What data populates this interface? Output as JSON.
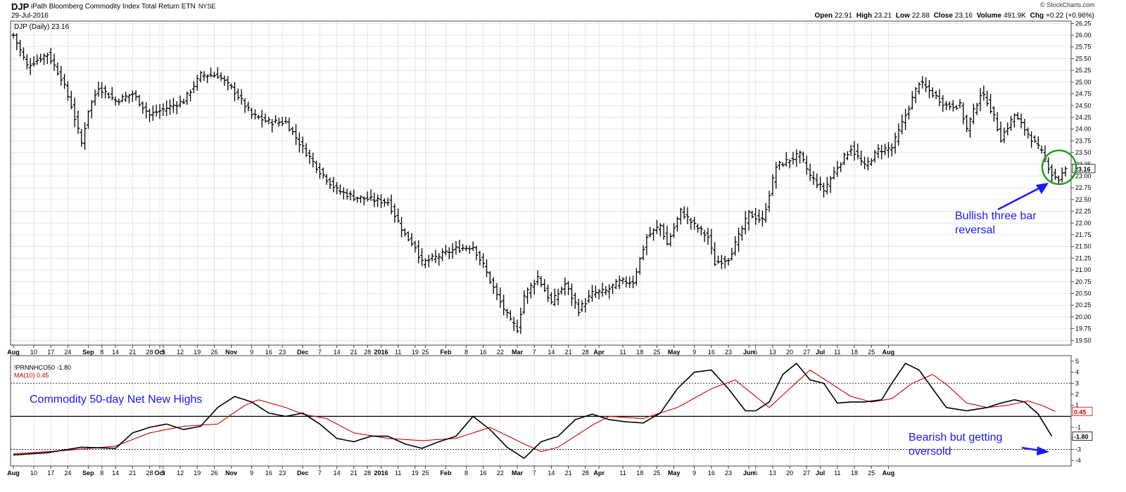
{
  "header": {
    "symbol": "DJP",
    "description": "iPath Bloomberg Commodity Index Total Return ETN",
    "exchange": "NYSE",
    "date": "29-Jul-2016",
    "copyright": "© StockCharts.com",
    "quote": {
      "open_label": "Open",
      "open": "22.91",
      "high_label": "High",
      "high": "23.21",
      "low_label": "Low",
      "low": "22.88",
      "close_label": "Close",
      "close": "23.16",
      "volume_label": "Volume",
      "volume": "491.9K",
      "chg_label": "Chg",
      "chg": "+0.22 (+0.96%)"
    }
  },
  "colors": {
    "price_bars": "#000000",
    "ma_line": "#cc0000",
    "indicator_line": "#000000",
    "annotation_blue": "#1a1aff",
    "circle_green": "#1f9e1f",
    "grid": "#d6d6d6"
  },
  "chart_data": [
    {
      "type": "ohlc",
      "legend": "DJP (Daily) 23.16",
      "last_value_tag": "23.16",
      "x_tick_labels": [
        "Aug",
        "10",
        "17",
        "24",
        "Sep",
        "8",
        "14",
        "21",
        "28",
        "Oct",
        "5",
        "12",
        "19",
        "26",
        "Nov",
        "9",
        "16",
        "23",
        "Dec",
        "7",
        "14",
        "21",
        "28",
        "2016",
        "11",
        "19",
        "25",
        "Feb",
        "8",
        "16",
        "22",
        "Mar",
        "7",
        "14",
        "21",
        "28",
        "Apr",
        "11",
        "18",
        "25",
        "May",
        "9",
        "16",
        "23",
        "Jun",
        "6",
        "13",
        "20",
        "27",
        "Jul",
        "11",
        "18",
        "25",
        "Aug"
      ],
      "y_tick_labels": [
        "19.50",
        "19.75",
        "20.00",
        "20.25",
        "20.50",
        "20.75",
        "21.00",
        "21.25",
        "21.50",
        "21.75",
        "22.00",
        "22.25",
        "22.50",
        "22.75",
        "23.00",
        "23.25",
        "23.50",
        "23.75",
        "24.00",
        "24.25",
        "24.50",
        "24.75",
        "25.00",
        "25.25",
        "25.50",
        "25.75",
        "26.00",
        "26.25"
      ],
      "ylim": [
        19.4,
        26.3
      ],
      "scale": "linear",
      "grid": true,
      "series": [
        {
          "anchors": [
            [
              0,
              26.0
            ],
            [
              4,
              25.35
            ],
            [
              10,
              25.6
            ],
            [
              14,
              25.1
            ],
            [
              17,
              24.5
            ],
            [
              20,
              23.7
            ],
            [
              22,
              24.4
            ],
            [
              25,
              24.9
            ],
            [
              30,
              24.6
            ],
            [
              35,
              24.75
            ],
            [
              40,
              24.3
            ],
            [
              45,
              24.45
            ],
            [
              50,
              24.6
            ],
            [
              55,
              25.15
            ],
            [
              60,
              25.15
            ],
            [
              65,
              24.8
            ],
            [
              70,
              24.3
            ],
            [
              75,
              24.15
            ],
            [
              80,
              24.15
            ],
            [
              85,
              23.6
            ],
            [
              90,
              23.1
            ],
            [
              95,
              22.7
            ],
            [
              100,
              22.55
            ],
            [
              105,
              22.5
            ],
            [
              110,
              22.45
            ],
            [
              115,
              21.75
            ],
            [
              118,
              21.5
            ],
            [
              120,
              21.15
            ],
            [
              125,
              21.3
            ],
            [
              130,
              21.45
            ],
            [
              135,
              21.5
            ],
            [
              138,
              21.1
            ],
            [
              142,
              20.45
            ],
            [
              146,
              19.9
            ],
            [
              148,
              19.75
            ],
            [
              150,
              20.45
            ],
            [
              154,
              20.85
            ],
            [
              158,
              20.3
            ],
            [
              162,
              20.7
            ],
            [
              166,
              20.15
            ],
            [
              170,
              20.5
            ],
            [
              174,
              20.55
            ],
            [
              178,
              20.75
            ],
            [
              182,
              20.75
            ],
            [
              186,
              21.7
            ],
            [
              190,
              21.95
            ],
            [
              192,
              21.55
            ],
            [
              196,
              22.25
            ],
            [
              200,
              21.95
            ],
            [
              204,
              21.7
            ],
            [
              206,
              21.15
            ],
            [
              210,
              21.25
            ],
            [
              212,
              21.55
            ],
            [
              216,
              22.2
            ],
            [
              220,
              22.05
            ],
            [
              224,
              23.2
            ],
            [
              228,
              23.35
            ],
            [
              231,
              23.45
            ],
            [
              234,
              23.0
            ],
            [
              238,
              22.7
            ],
            [
              242,
              23.2
            ],
            [
              246,
              23.6
            ],
            [
              250,
              23.2
            ],
            [
              254,
              23.55
            ],
            [
              258,
              23.6
            ],
            [
              262,
              24.3
            ],
            [
              266,
              25.0
            ],
            [
              270,
              24.75
            ],
            [
              274,
              24.5
            ],
            [
              278,
              24.5
            ],
            [
              280,
              24.0
            ],
            [
              284,
              24.75
            ],
            [
              286,
              24.6
            ],
            [
              288,
              24.25
            ],
            [
              290,
              23.8
            ],
            [
              294,
              24.3
            ],
            [
              298,
              23.9
            ],
            [
              302,
              23.5
            ],
            [
              305,
              23.05
            ],
            [
              307,
              22.93
            ],
            [
              309,
              23.16
            ]
          ]
        }
      ]
    },
    {
      "type": "line",
      "legend_main": "!PRNNHCO50 -1.80",
      "legend_ma": "MA(10) 0.45",
      "last_tag_main": "-1.80",
      "last_tag_ma": "0.45",
      "x_tick_labels": [
        "Aug",
        "10",
        "17",
        "24",
        "Sep",
        "8",
        "14",
        "21",
        "28",
        "Oct",
        "5",
        "12",
        "19",
        "26",
        "Nov",
        "9",
        "16",
        "23",
        "Dec",
        "7",
        "14",
        "21",
        "28",
        "2016",
        "11",
        "19",
        "25",
        "Feb",
        "8",
        "16",
        "22",
        "Mar",
        "7",
        "14",
        "21",
        "28",
        "Apr",
        "11",
        "18",
        "25",
        "May",
        "9",
        "16",
        "23",
        "Jun",
        "6",
        "13",
        "20",
        "27",
        "Jul",
        "11",
        "18",
        "25",
        "Aug"
      ],
      "y_tick_labels": [
        "5",
        "4",
        "3",
        "2",
        "1",
        "-1",
        "-2",
        "-3",
        "-4"
      ],
      "ylim": [
        -4.5,
        5.5
      ],
      "reference_lines": [
        3,
        0,
        -3
      ],
      "series": [
        {
          "name": "!PRNNHCO50",
          "anchors": [
            [
              0,
              -3.5
            ],
            [
              10,
              -3.3
            ],
            [
              20,
              -2.8
            ],
            [
              30,
              -2.9
            ],
            [
              35,
              -1.5
            ],
            [
              40,
              -1.0
            ],
            [
              45,
              -0.7
            ],
            [
              50,
              -1.2
            ],
            [
              55,
              -0.9
            ],
            [
              60,
              0.8
            ],
            [
              65,
              1.8
            ],
            [
              70,
              1.3
            ],
            [
              75,
              0.3
            ],
            [
              80,
              0.0
            ],
            [
              85,
              0.3
            ],
            [
              90,
              -0.7
            ],
            [
              95,
              -2.0
            ],
            [
              100,
              -2.3
            ],
            [
              105,
              -1.8
            ],
            [
              110,
              -1.8
            ],
            [
              115,
              -2.5
            ],
            [
              120,
              -2.9
            ],
            [
              125,
              -2.3
            ],
            [
              130,
              -1.8
            ],
            [
              135,
              0.0
            ],
            [
              140,
              -1.2
            ],
            [
              145,
              -2.8
            ],
            [
              150,
              -3.8
            ],
            [
              155,
              -2.3
            ],
            [
              160,
              -1.8
            ],
            [
              165,
              -0.3
            ],
            [
              170,
              0.2
            ],
            [
              175,
              -0.3
            ],
            [
              180,
              -0.5
            ],
            [
              185,
              -0.6
            ],
            [
              190,
              0.3
            ],
            [
              195,
              2.5
            ],
            [
              200,
              4.0
            ],
            [
              205,
              4.2
            ],
            [
              210,
              2.5
            ],
            [
              215,
              0.5
            ],
            [
              218,
              0.5
            ],
            [
              222,
              1.3
            ],
            [
              226,
              3.8
            ],
            [
              230,
              4.8
            ],
            [
              234,
              3.3
            ],
            [
              238,
              3.0
            ],
            [
              242,
              1.2
            ],
            [
              246,
              1.3
            ],
            [
              250,
              1.3
            ],
            [
              255,
              1.5
            ],
            [
              258,
              3.0
            ],
            [
              262,
              4.8
            ],
            [
              266,
              4.2
            ],
            [
              270,
              2.5
            ],
            [
              274,
              0.8
            ],
            [
              280,
              0.5
            ],
            [
              286,
              0.8
            ],
            [
              290,
              1.2
            ],
            [
              294,
              1.5
            ],
            [
              297,
              1.3
            ],
            [
              301,
              0.2
            ],
            [
              305,
              -1.8
            ]
          ]
        },
        {
          "name": "MA(10)",
          "anchors": [
            [
              0,
              -3.4
            ],
            [
              15,
              -3.1
            ],
            [
              30,
              -2.7
            ],
            [
              40,
              -1.5
            ],
            [
              50,
              -0.9
            ],
            [
              60,
              -0.7
            ],
            [
              68,
              1.0
            ],
            [
              72,
              1.5
            ],
            [
              80,
              0.8
            ],
            [
              85,
              0.2
            ],
            [
              92,
              -0.2
            ],
            [
              100,
              -1.5
            ],
            [
              110,
              -2.0
            ],
            [
              120,
              -2.2
            ],
            [
              130,
              -2.0
            ],
            [
              140,
              -1.0
            ],
            [
              150,
              -2.5
            ],
            [
              155,
              -3.2
            ],
            [
              160,
              -2.8
            ],
            [
              170,
              -0.8
            ],
            [
              175,
              0.0
            ],
            [
              185,
              -0.2
            ],
            [
              195,
              0.8
            ],
            [
              205,
              2.5
            ],
            [
              212,
              3.3
            ],
            [
              218,
              1.8
            ],
            [
              222,
              0.8
            ],
            [
              228,
              2.5
            ],
            [
              234,
              4.2
            ],
            [
              240,
              3.0
            ],
            [
              246,
              1.8
            ],
            [
              252,
              1.3
            ],
            [
              258,
              1.6
            ],
            [
              264,
              3.0
            ],
            [
              270,
              3.8
            ],
            [
              274,
              2.9
            ],
            [
              280,
              1.2
            ],
            [
              286,
              0.8
            ],
            [
              292,
              1.0
            ],
            [
              298,
              1.4
            ],
            [
              302,
              1.0
            ],
            [
              306,
              0.45
            ]
          ]
        }
      ]
    }
  ],
  "annotations": {
    "reversal": "Bullish three bar\nreversal",
    "indicator_title": "Commodity 50-day Net New Highs",
    "bearish": "Bearish but getting\noversold"
  }
}
